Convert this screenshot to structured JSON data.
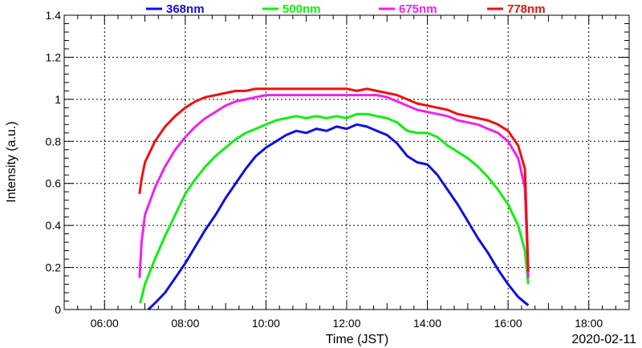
{
  "chart_data": {
    "type": "line",
    "title": "",
    "xlabel": "Time (JST)",
    "ylabel": "Intensity (a.u.)",
    "date_label": "2020-02-11",
    "xlim": [
      "05:00",
      "19:00"
    ],
    "ylim": [
      0,
      1.4
    ],
    "x_ticks": [
      "06:00",
      "08:00",
      "10:00",
      "12:00",
      "14:00",
      "16:00",
      "18:00"
    ],
    "y_ticks": [
      "0",
      "0.2",
      "0.4",
      "0.6",
      "0.8",
      "1",
      "1.2",
      "1.4"
    ],
    "grid": true,
    "legend_position": "top",
    "series": [
      {
        "name": "368nm",
        "color": "#1010dd",
        "points": [
          [
            "07:05",
            0.0
          ],
          [
            "07:15",
            0.03
          ],
          [
            "07:30",
            0.08
          ],
          [
            "07:45",
            0.15
          ],
          [
            "08:00",
            0.22
          ],
          [
            "08:15",
            0.3
          ],
          [
            "08:30",
            0.38
          ],
          [
            "08:45",
            0.45
          ],
          [
            "09:00",
            0.53
          ],
          [
            "09:15",
            0.6
          ],
          [
            "09:30",
            0.67
          ],
          [
            "09:45",
            0.73
          ],
          [
            "10:00",
            0.77
          ],
          [
            "10:15",
            0.8
          ],
          [
            "10:30",
            0.83
          ],
          [
            "10:45",
            0.85
          ],
          [
            "11:00",
            0.84
          ],
          [
            "11:15",
            0.86
          ],
          [
            "11:30",
            0.85
          ],
          [
            "11:45",
            0.87
          ],
          [
            "12:00",
            0.86
          ],
          [
            "12:15",
            0.88
          ],
          [
            "12:30",
            0.87
          ],
          [
            "12:45",
            0.85
          ],
          [
            "13:00",
            0.83
          ],
          [
            "13:15",
            0.79
          ],
          [
            "13:30",
            0.73
          ],
          [
            "13:45",
            0.7
          ],
          [
            "14:00",
            0.69
          ],
          [
            "14:15",
            0.64
          ],
          [
            "14:30",
            0.57
          ],
          [
            "14:45",
            0.5
          ],
          [
            "15:00",
            0.42
          ],
          [
            "15:15",
            0.34
          ],
          [
            "15:30",
            0.27
          ],
          [
            "15:45",
            0.19
          ],
          [
            "16:00",
            0.12
          ],
          [
            "16:15",
            0.06
          ],
          [
            "16:30",
            0.02
          ]
        ]
      },
      {
        "name": "500nm",
        "color": "#11ee11",
        "points": [
          [
            "06:53",
            0.03
          ],
          [
            "07:00",
            0.12
          ],
          [
            "07:15",
            0.24
          ],
          [
            "07:30",
            0.35
          ],
          [
            "07:45",
            0.45
          ],
          [
            "08:00",
            0.55
          ],
          [
            "08:15",
            0.62
          ],
          [
            "08:30",
            0.68
          ],
          [
            "08:45",
            0.73
          ],
          [
            "09:00",
            0.77
          ],
          [
            "09:15",
            0.81
          ],
          [
            "09:30",
            0.84
          ],
          [
            "09:45",
            0.86
          ],
          [
            "10:00",
            0.88
          ],
          [
            "10:15",
            0.9
          ],
          [
            "10:30",
            0.91
          ],
          [
            "10:45",
            0.92
          ],
          [
            "11:00",
            0.91
          ],
          [
            "11:15",
            0.92
          ],
          [
            "11:30",
            0.91
          ],
          [
            "11:45",
            0.92
          ],
          [
            "12:00",
            0.91
          ],
          [
            "12:15",
            0.93
          ],
          [
            "12:30",
            0.93
          ],
          [
            "12:45",
            0.92
          ],
          [
            "13:00",
            0.91
          ],
          [
            "13:15",
            0.89
          ],
          [
            "13:30",
            0.85
          ],
          [
            "13:45",
            0.84
          ],
          [
            "14:00",
            0.84
          ],
          [
            "14:15",
            0.82
          ],
          [
            "14:30",
            0.78
          ],
          [
            "14:45",
            0.75
          ],
          [
            "15:00",
            0.72
          ],
          [
            "15:15",
            0.68
          ],
          [
            "15:30",
            0.63
          ],
          [
            "15:45",
            0.57
          ],
          [
            "16:00",
            0.5
          ],
          [
            "16:15",
            0.4
          ],
          [
            "16:25",
            0.28
          ],
          [
            "16:30",
            0.12
          ]
        ]
      },
      {
        "name": "675nm",
        "color": "#ee22ee",
        "points": [
          [
            "06:52",
            0.15
          ],
          [
            "06:55",
            0.32
          ],
          [
            "07:00",
            0.45
          ],
          [
            "07:15",
            0.58
          ],
          [
            "07:30",
            0.68
          ],
          [
            "07:45",
            0.76
          ],
          [
            "08:00",
            0.82
          ],
          [
            "08:15",
            0.87
          ],
          [
            "08:30",
            0.91
          ],
          [
            "08:45",
            0.94
          ],
          [
            "09:00",
            0.97
          ],
          [
            "09:15",
            0.99
          ],
          [
            "09:30",
            1.0
          ],
          [
            "09:45",
            1.01
          ],
          [
            "10:00",
            1.02
          ],
          [
            "10:15",
            1.02
          ],
          [
            "10:30",
            1.02
          ],
          [
            "10:45",
            1.02
          ],
          [
            "11:00",
            1.02
          ],
          [
            "11:15",
            1.02
          ],
          [
            "11:30",
            1.02
          ],
          [
            "11:45",
            1.02
          ],
          [
            "12:00",
            1.02
          ],
          [
            "12:15",
            1.02
          ],
          [
            "12:30",
            1.02
          ],
          [
            "12:45",
            1.02
          ],
          [
            "13:00",
            1.01
          ],
          [
            "13:15",
            0.99
          ],
          [
            "13:30",
            0.97
          ],
          [
            "13:45",
            0.95
          ],
          [
            "14:00",
            0.94
          ],
          [
            "14:15",
            0.93
          ],
          [
            "14:30",
            0.92
          ],
          [
            "14:45",
            0.9
          ],
          [
            "15:00",
            0.89
          ],
          [
            "15:15",
            0.88
          ],
          [
            "15:30",
            0.86
          ],
          [
            "15:45",
            0.84
          ],
          [
            "16:00",
            0.8
          ],
          [
            "16:15",
            0.72
          ],
          [
            "16:25",
            0.58
          ],
          [
            "16:30",
            0.15
          ]
        ]
      },
      {
        "name": "778nm",
        "color": "#ee1111",
        "points": [
          [
            "06:52",
            0.55
          ],
          [
            "06:55",
            0.62
          ],
          [
            "07:00",
            0.7
          ],
          [
            "07:15",
            0.8
          ],
          [
            "07:30",
            0.87
          ],
          [
            "07:45",
            0.92
          ],
          [
            "08:00",
            0.96
          ],
          [
            "08:15",
            0.99
          ],
          [
            "08:30",
            1.01
          ],
          [
            "08:45",
            1.02
          ],
          [
            "09:00",
            1.03
          ],
          [
            "09:15",
            1.04
          ],
          [
            "09:30",
            1.04
          ],
          [
            "09:45",
            1.05
          ],
          [
            "10:00",
            1.05
          ],
          [
            "10:15",
            1.05
          ],
          [
            "10:30",
            1.05
          ],
          [
            "10:45",
            1.05
          ],
          [
            "11:00",
            1.05
          ],
          [
            "11:15",
            1.05
          ],
          [
            "11:30",
            1.05
          ],
          [
            "11:45",
            1.05
          ],
          [
            "12:00",
            1.05
          ],
          [
            "12:15",
            1.04
          ],
          [
            "12:30",
            1.05
          ],
          [
            "12:45",
            1.04
          ],
          [
            "13:00",
            1.03
          ],
          [
            "13:15",
            1.02
          ],
          [
            "13:30",
            1.0
          ],
          [
            "13:45",
            0.98
          ],
          [
            "14:00",
            0.97
          ],
          [
            "14:15",
            0.96
          ],
          [
            "14:30",
            0.95
          ],
          [
            "14:45",
            0.93
          ],
          [
            "15:00",
            0.92
          ],
          [
            "15:15",
            0.91
          ],
          [
            "15:30",
            0.9
          ],
          [
            "15:45",
            0.88
          ],
          [
            "16:00",
            0.85
          ],
          [
            "16:15",
            0.78
          ],
          [
            "16:25",
            0.67
          ],
          [
            "16:30",
            0.18
          ]
        ]
      }
    ]
  }
}
